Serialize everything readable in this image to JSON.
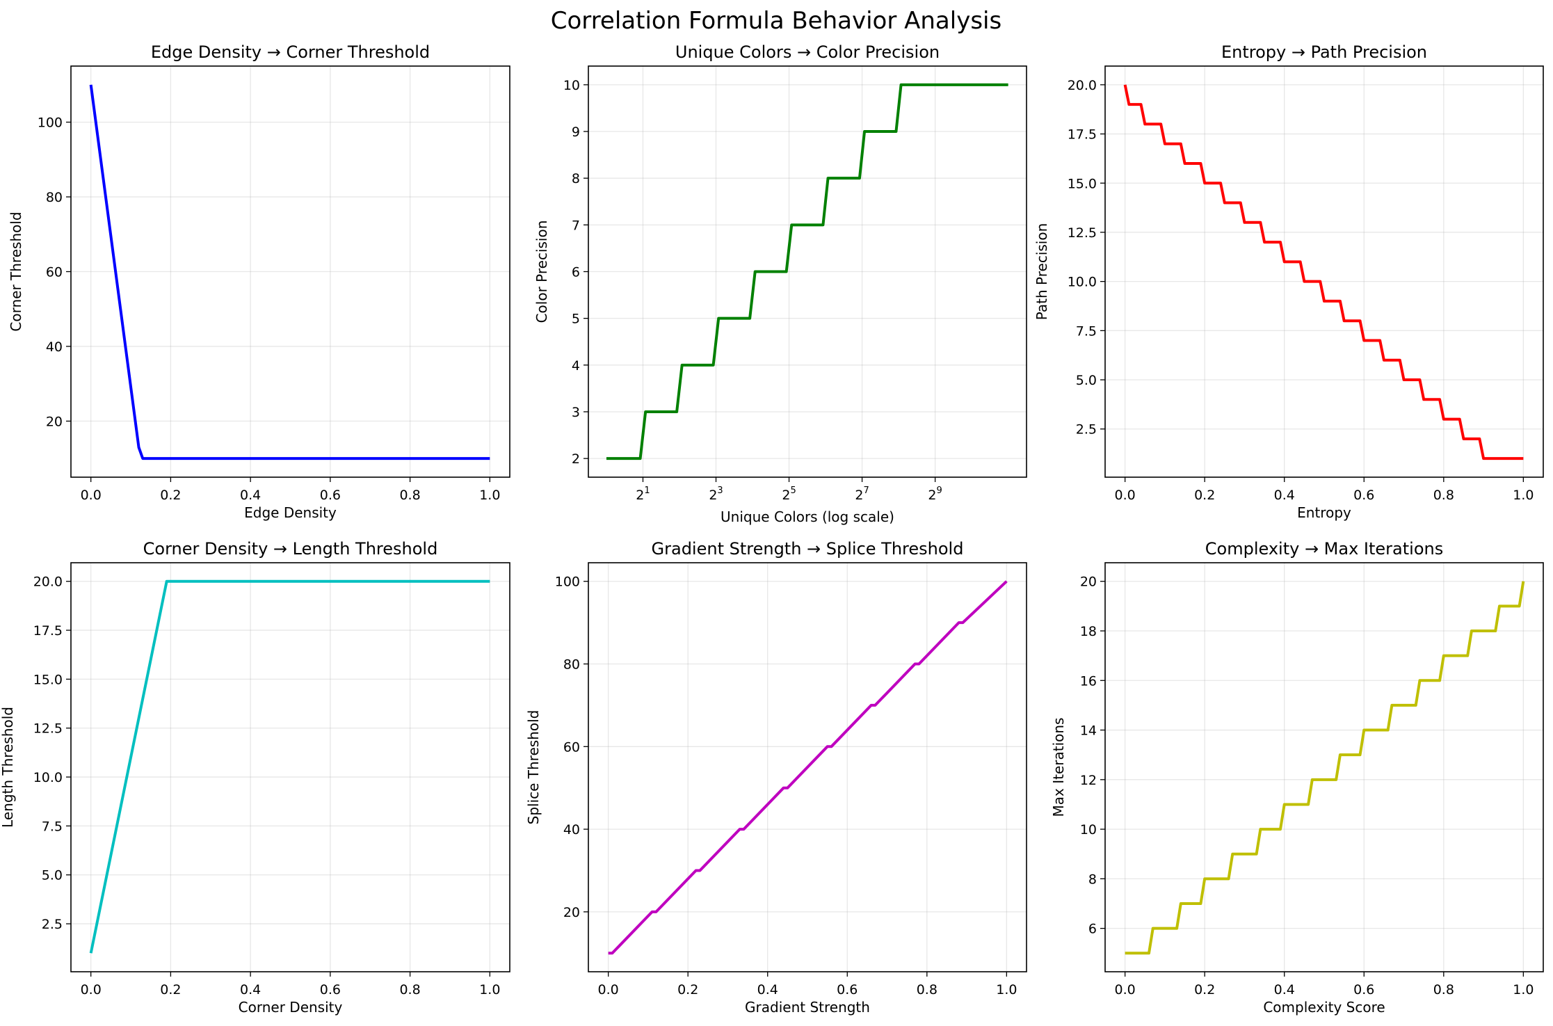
{
  "figure": {
    "title": "Correlation Formula Behavior Analysis"
  },
  "chart_data": [
    {
      "type": "line",
      "title": "Edge Density → Corner Threshold",
      "xlabel": "Edge Density",
      "ylabel": "Corner Threshold",
      "color": "#0000ff",
      "xlim": [
        -0.05,
        1.05
      ],
      "ylim": [
        5,
        115
      ],
      "xticks": [
        0,
        0.2,
        0.4,
        0.6,
        0.8,
        1.0
      ],
      "xtick_labels": [
        "0.0",
        "0.2",
        "0.4",
        "0.6",
        "0.8",
        "1.0"
      ],
      "yticks": [
        20,
        40,
        60,
        80,
        100
      ],
      "ytick_labels": [
        "20",
        "40",
        "60",
        "80",
        "100"
      ],
      "grid": true,
      "x": [
        0,
        0.12,
        0.13,
        1.0
      ],
      "y": [
        110,
        13,
        10,
        10
      ]
    },
    {
      "type": "line",
      "title": "Unique Colors → Color Precision",
      "xlabel": "Unique Colors (log scale)",
      "ylabel": "Color Precision",
      "color": "#008000",
      "x_scale": "log2",
      "xlim": [
        0.71,
        2900
      ],
      "ylim": [
        1.6,
        10.4
      ],
      "xticks": [
        2,
        8,
        32,
        128,
        512
      ],
      "xtick_labels": [
        {
          "base": "2",
          "exp": "1"
        },
        {
          "base": "2",
          "exp": "3"
        },
        {
          "base": "2",
          "exp": "5"
        },
        {
          "base": "2",
          "exp": "7"
        },
        {
          "base": "2",
          "exp": "9"
        }
      ],
      "yticks": [
        2,
        3,
        4,
        5,
        6,
        7,
        8,
        9,
        10
      ],
      "ytick_labels": [
        "2",
        "3",
        "4",
        "5",
        "6",
        "7",
        "8",
        "9",
        "10"
      ],
      "grid": true,
      "x": [
        1,
        1.9,
        2.1,
        3.8,
        4.2,
        7.6,
        8.4,
        15.2,
        16.8,
        30.4,
        33.6,
        61,
        67,
        122,
        134,
        244,
        268,
        2048
      ],
      "y": [
        2,
        2,
        3,
        3,
        4,
        4,
        5,
        5,
        6,
        6,
        7,
        7,
        8,
        8,
        9,
        9,
        10,
        10
      ]
    },
    {
      "type": "line",
      "title": "Entropy → Path Precision",
      "xlabel": "Entropy",
      "ylabel": "Path Precision",
      "color": "#ff0000",
      "xlim": [
        -0.05,
        1.05
      ],
      "ylim": [
        0.05,
        20.95
      ],
      "xticks": [
        0,
        0.2,
        0.4,
        0.6,
        0.8,
        1.0
      ],
      "xtick_labels": [
        "0.0",
        "0.2",
        "0.4",
        "0.6",
        "0.8",
        "1.0"
      ],
      "yticks": [
        2.5,
        5,
        7.5,
        10,
        12.5,
        15,
        17.5,
        20
      ],
      "ytick_labels": [
        "2.5",
        "5.0",
        "7.5",
        "10.0",
        "12.5",
        "15.0",
        "17.5",
        "20.0"
      ],
      "grid": true,
      "x": [
        0,
        0.01,
        0.04,
        0.05,
        0.09,
        0.1,
        0.14,
        0.15,
        0.19,
        0.2,
        0.24,
        0.25,
        0.29,
        0.3,
        0.34,
        0.35,
        0.39,
        0.4,
        0.44,
        0.45,
        0.49,
        0.5,
        0.54,
        0.55,
        0.59,
        0.6,
        0.64,
        0.65,
        0.69,
        0.7,
        0.74,
        0.75,
        0.79,
        0.8,
        0.84,
        0.85,
        0.89,
        0.9,
        1.0
      ],
      "y": [
        20,
        19,
        19,
        18,
        18,
        17,
        17,
        16,
        16,
        15,
        15,
        14,
        14,
        13,
        13,
        12,
        12,
        11,
        11,
        10,
        10,
        9,
        9,
        8,
        8,
        7,
        7,
        6,
        6,
        5,
        5,
        4,
        4,
        3,
        3,
        2,
        2,
        1,
        1
      ]
    },
    {
      "type": "line",
      "title": "Corner Density → Length Threshold",
      "xlabel": "Corner Density",
      "ylabel": "Length Threshold",
      "color": "#00bfbf",
      "xlim": [
        -0.05,
        1.05
      ],
      "ylim": [
        0.05,
        20.95
      ],
      "xticks": [
        0,
        0.2,
        0.4,
        0.6,
        0.8,
        1.0
      ],
      "xtick_labels": [
        "0.0",
        "0.2",
        "0.4",
        "0.6",
        "0.8",
        "1.0"
      ],
      "yticks": [
        2.5,
        5,
        7.5,
        10,
        12.5,
        15,
        17.5,
        20
      ],
      "ytick_labels": [
        "2.5",
        "5.0",
        "7.5",
        "10.0",
        "12.5",
        "15.0",
        "17.5",
        "20.0"
      ],
      "grid": true,
      "x": [
        0,
        0.19,
        1.0
      ],
      "y": [
        1,
        20,
        20
      ]
    },
    {
      "type": "line",
      "title": "Gradient Strength → Splice Threshold",
      "xlabel": "Gradient Strength",
      "ylabel": "Splice Threshold",
      "color": "#bf00bf",
      "xlim": [
        -0.05,
        1.05
      ],
      "ylim": [
        5.5,
        104.5
      ],
      "xticks": [
        0,
        0.2,
        0.4,
        0.6,
        0.8,
        1.0
      ],
      "xtick_labels": [
        "0.0",
        "0.2",
        "0.4",
        "0.6",
        "0.8",
        "1.0"
      ],
      "yticks": [
        20,
        40,
        60,
        80,
        100
      ],
      "ytick_labels": [
        "20",
        "40",
        "60",
        "80",
        "100"
      ],
      "grid": true,
      "x": [
        0,
        0.01,
        0.11,
        0.12,
        0.22,
        0.23,
        0.33,
        0.34,
        0.44,
        0.45,
        0.55,
        0.56,
        0.66,
        0.67,
        0.77,
        0.78,
        0.88,
        0.89,
        1.0
      ],
      "y": [
        10,
        10,
        20,
        20,
        30,
        30,
        40,
        40,
        50,
        50,
        60,
        60,
        70,
        70,
        80,
        80,
        90,
        90,
        100
      ]
    },
    {
      "type": "line",
      "title": "Complexity → Max Iterations",
      "xlabel": "Complexity Score",
      "ylabel": "Max Iterations",
      "color": "#bfbf00",
      "xlim": [
        -0.05,
        1.05
      ],
      "ylim": [
        4.25,
        20.75
      ],
      "xticks": [
        0,
        0.2,
        0.4,
        0.6,
        0.8,
        1.0
      ],
      "xtick_labels": [
        "0.0",
        "0.2",
        "0.4",
        "0.6",
        "0.8",
        "1.0"
      ],
      "yticks": [
        6,
        8,
        10,
        12,
        14,
        16,
        18,
        20
      ],
      "ytick_labels": [
        "6",
        "8",
        "10",
        "12",
        "14",
        "16",
        "18",
        "20"
      ],
      "grid": true,
      "x": [
        0,
        0.06,
        0.07,
        0.13,
        0.14,
        0.19,
        0.2,
        0.26,
        0.27,
        0.33,
        0.34,
        0.39,
        0.4,
        0.46,
        0.47,
        0.53,
        0.54,
        0.59,
        0.6,
        0.66,
        0.67,
        0.73,
        0.74,
        0.79,
        0.8,
        0.86,
        0.87,
        0.93,
        0.94,
        0.99,
        1.0
      ],
      "y": [
        5,
        5,
        6,
        6,
        7,
        7,
        8,
        8,
        9,
        9,
        10,
        10,
        11,
        11,
        12,
        12,
        13,
        13,
        14,
        14,
        15,
        15,
        16,
        16,
        17,
        17,
        18,
        18,
        19,
        19,
        20
      ]
    }
  ]
}
